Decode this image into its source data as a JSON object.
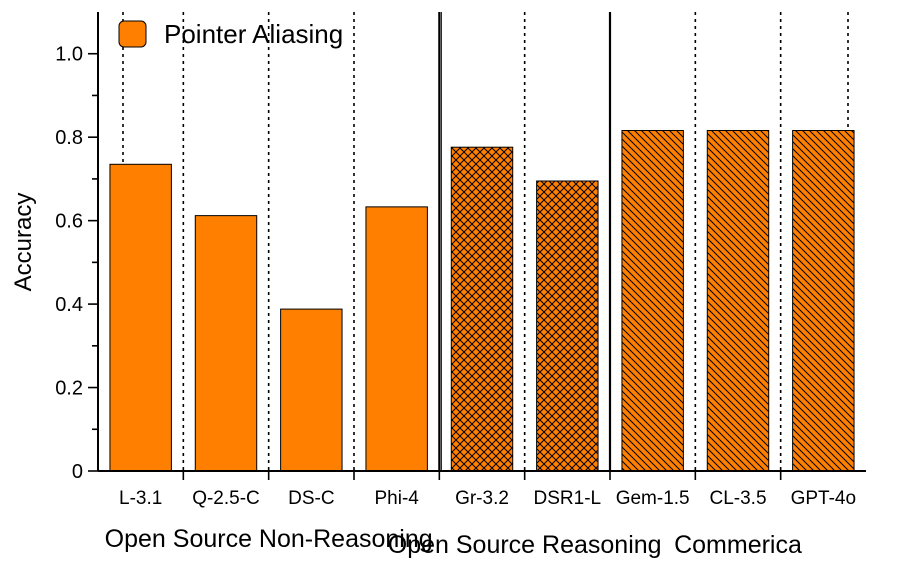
{
  "chart_data": {
    "type": "bar",
    "ylabel": "Accuracy",
    "ylim": [
      0,
      1.1
    ],
    "yticks": [
      "0",
      "0.2",
      "0.4",
      "0.6",
      "0.8",
      "1.0"
    ],
    "legend": {
      "label": "Pointer Aliasing",
      "placement": "top-left"
    },
    "bar_color": "#ff8000",
    "categories": [
      "L-3.1",
      "Q-2.5-C",
      "DS-C",
      "Phi-4",
      "Gr-3.2",
      "DSR1-L",
      "Gem-1.5",
      "CL-3.5",
      "GPT-4o"
    ],
    "values": [
      0.735,
      0.612,
      0.388,
      0.633,
      0.776,
      0.695,
      0.816,
      0.816,
      0.816
    ],
    "patterns": [
      "solid",
      "solid",
      "solid",
      "solid",
      "crosshatch",
      "crosshatch",
      "diagonal",
      "diagonal",
      "diagonal"
    ],
    "groups": [
      {
        "label": "Open Source Non-Reasoning",
        "start": 0,
        "end": 3
      },
      {
        "label": "Open Source Reasoning",
        "start": 4,
        "end": 5
      },
      {
        "label": "Commerica",
        "start": 6,
        "end": 8
      }
    ],
    "grid": false
  }
}
